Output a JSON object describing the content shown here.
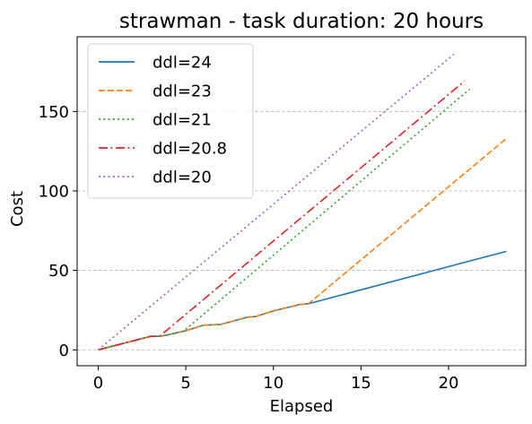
{
  "chart_data": {
    "type": "line",
    "title": "strawman - task duration: 20 hours",
    "xlabel": "Elapsed",
    "ylabel": "Cost",
    "xlim": [
      -1.2,
      24.4
    ],
    "ylim": [
      -10,
      197
    ],
    "xticks": [
      0,
      5,
      10,
      15,
      20
    ],
    "yticks": [
      0,
      50,
      100,
      150
    ],
    "grid": "y-dashed",
    "legend_position": "top-left",
    "series": [
      {
        "name": "ddl=24",
        "color": "#1f77b4",
        "dash": "solid",
        "x": [
          0,
          3,
          3.5,
          4,
          5,
          6,
          7,
          8.5,
          9,
          10,
          11.5,
          12,
          23.3
        ],
        "y": [
          0,
          8.5,
          8.5,
          9.5,
          12,
          15.5,
          16,
          20.5,
          21,
          24.5,
          28.5,
          29,
          62
        ]
      },
      {
        "name": "ddl=23",
        "color": "#ff7f0e",
        "dash": "dashed",
        "x": [
          0,
          3,
          3.5,
          4,
          5,
          6,
          7,
          8.5,
          9,
          10,
          11.5,
          12,
          23.3
        ],
        "y": [
          0,
          8.5,
          8.5,
          9.5,
          12,
          15.5,
          16,
          20.5,
          21,
          24.5,
          28.5,
          29,
          133
        ]
      },
      {
        "name": "ddl=21",
        "color": "#2ca02c",
        "dash": "dotted",
        "x": [
          0,
          3,
          3.5,
          4,
          4.9,
          21.2
        ],
        "y": [
          0,
          8.5,
          8.5,
          9.5,
          12,
          164
        ]
      },
      {
        "name": "ddl=20.8",
        "color": "#d62728",
        "dash": "dashdot",
        "x": [
          0,
          3,
          3.5,
          20.9
        ],
        "y": [
          0,
          8.5,
          8.5,
          169
        ]
      },
      {
        "name": "ddl=20",
        "color": "#9467bd",
        "dash": "dotted",
        "x": [
          0,
          20.3
        ],
        "y": [
          0,
          186
        ]
      }
    ]
  }
}
